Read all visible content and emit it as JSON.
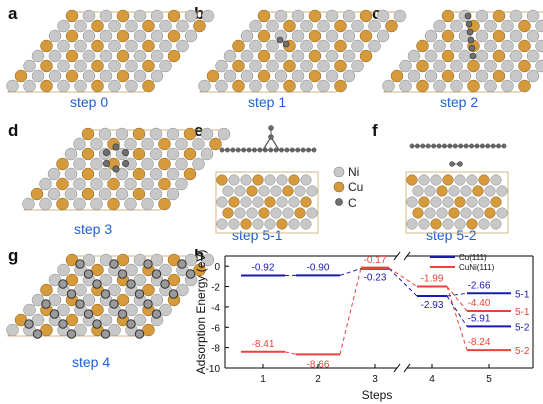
{
  "panels": [
    {
      "letter": "a",
      "caption": "step 0"
    },
    {
      "letter": "b",
      "caption": "step 1"
    },
    {
      "letter": "c",
      "caption": "step 2"
    },
    {
      "letter": "d",
      "caption": "step 3"
    },
    {
      "letter": "e",
      "caption": "step 5-1"
    },
    {
      "letter": "f",
      "caption": "step 5-2"
    },
    {
      "letter": "g",
      "caption": "step 4"
    },
    {
      "letter": "h",
      "caption": ""
    }
  ],
  "legend_atoms": [
    {
      "symbol": "Ni",
      "color": "#c8c8c8"
    },
    {
      "symbol": "Cu",
      "color": "#d49a3c"
    },
    {
      "symbol": "C",
      "color": "#6f6f6f"
    }
  ],
  "colors": {
    "ni": "#c8c8c8",
    "cu": "#d49a3c",
    "carbon": "#6f6f6f",
    "caption_blue": "#1d5fd0",
    "cu_series": "#1a1ab0",
    "cuni_series": "#e8433a"
  },
  "chart_data": {
    "type": "line",
    "xlabel": "Steps",
    "ylabel": "Adsorption Energy (eV)",
    "x_ticks": [
      "1",
      "2",
      "3",
      "4",
      "5"
    ],
    "y_ticks": [
      "0",
      "-2",
      "-4",
      "-6",
      "-8",
      "-10"
    ],
    "ylim": [
      -10,
      1
    ],
    "axis_break": "between steps 3 and 4",
    "series": [
      {
        "name": "Cu(111)",
        "color": "#1a1ab0",
        "points": [
          {
            "x": 1,
            "y": -0.92,
            "label": "-0.92"
          },
          {
            "x": 2,
            "y": -0.9,
            "label": "-0.90"
          },
          {
            "x": 3,
            "y": -0.23,
            "label": "-0.23"
          },
          {
            "x": 4,
            "y": -2.93,
            "label": "-2.93"
          },
          {
            "x": 5,
            "y": -2.66,
            "label": "-2.66",
            "tag": "5-1"
          },
          {
            "x": 5,
            "y": -5.91,
            "label": "-5.91",
            "tag": "5-2"
          }
        ]
      },
      {
        "name": "CuNi(111)",
        "color": "#e8433a",
        "points": [
          {
            "x": 1,
            "y": -8.41,
            "label": "-8.41"
          },
          {
            "x": 2,
            "y": -8.66,
            "label": "-8.66"
          },
          {
            "x": 3,
            "y": -0.17,
            "label": "-0.17"
          },
          {
            "x": 4,
            "y": -1.99,
            "label": "-1.99"
          },
          {
            "x": 5,
            "y": -4.4,
            "label": "-4.40",
            "tag": "5-1"
          },
          {
            "x": 5,
            "y": -8.24,
            "label": "-8.24",
            "tag": "5-2"
          }
        ]
      }
    ]
  }
}
